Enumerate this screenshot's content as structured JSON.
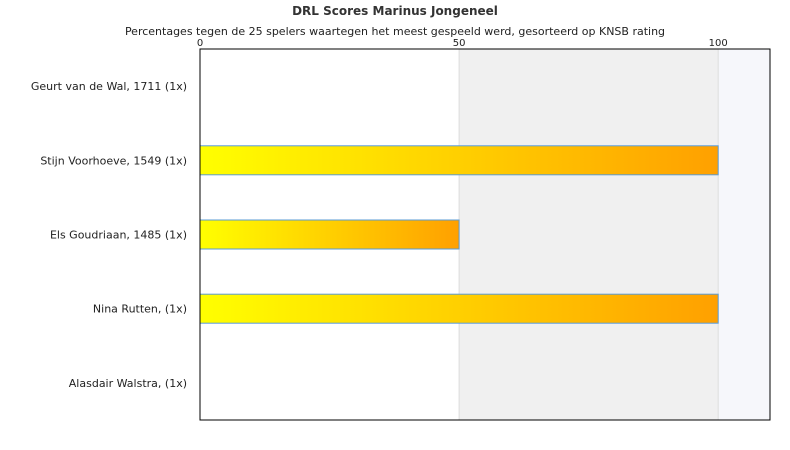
{
  "chart_data": {
    "type": "bar",
    "orientation": "horizontal",
    "title": "DRL Scores Marinus Jongeneel",
    "subtitle": "Percentages tegen de 25 spelers waartegen het meest gespeeld werd, gesorteerd op KNSB rating",
    "categories": [
      "Geurt van de Wal, 1711 (1x)",
      "Stijn Voorhoeve, 1549 (1x)",
      "Els Goudriaan, 1485 (1x)",
      "Nina Rutten,  (1x)",
      "Alasdair Walstra,  (1x)"
    ],
    "values": [
      0,
      100,
      50,
      100,
      0
    ],
    "xlim": [
      0,
      110
    ],
    "x_ticks": [
      0,
      50,
      100
    ],
    "x_tick_labels": [
      "0",
      "50",
      "100"
    ],
    "axis_position": "top",
    "grid": true,
    "colors": {
      "bar_gradient_start": "#ffff00",
      "bar_gradient_end": "#ffa000",
      "bar_border": "#5a9bd5",
      "band_shade": "#f0f0f0",
      "band_shade_light": "#f6f7fb",
      "frame": "#000000"
    }
  }
}
